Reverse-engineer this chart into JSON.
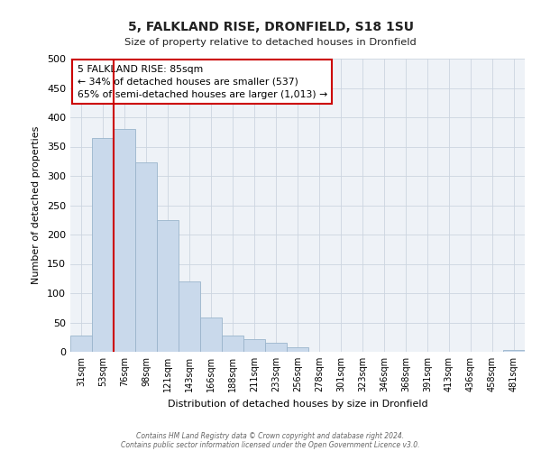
{
  "title": "5, FALKLAND RISE, DRONFIELD, S18 1SU",
  "subtitle": "Size of property relative to detached houses in Dronfield",
  "xlabel": "Distribution of detached houses by size in Dronfield",
  "ylabel": "Number of detached properties",
  "bar_color": "#c9d9eb",
  "bar_edgecolor": "#9ab4cc",
  "grid_color": "#ccd5e0",
  "bg_color": "#eef2f7",
  "categories": [
    "31sqm",
    "53sqm",
    "76sqm",
    "98sqm",
    "121sqm",
    "143sqm",
    "166sqm",
    "188sqm",
    "211sqm",
    "233sqm",
    "256sqm",
    "278sqm",
    "301sqm",
    "323sqm",
    "346sqm",
    "368sqm",
    "391sqm",
    "413sqm",
    "436sqm",
    "458sqm",
    "481sqm"
  ],
  "values": [
    28,
    365,
    380,
    323,
    225,
    120,
    58,
    28,
    22,
    16,
    7,
    0,
    0,
    0,
    0,
    0,
    0,
    0,
    0,
    0,
    3
  ],
  "ylim": [
    0,
    500
  ],
  "yticks": [
    0,
    50,
    100,
    150,
    200,
    250,
    300,
    350,
    400,
    450,
    500
  ],
  "vline_index": 2,
  "vline_color": "#cc0000",
  "annotation_text": "5 FALKLAND RISE: 85sqm\n← 34% of detached houses are smaller (537)\n65% of semi-detached houses are larger (1,013) →",
  "annotation_box_color": "#ffffff",
  "annotation_box_edgecolor": "#cc0000",
  "footer1": "Contains HM Land Registry data © Crown copyright and database right 2024.",
  "footer2": "Contains public sector information licensed under the Open Government Licence v3.0."
}
